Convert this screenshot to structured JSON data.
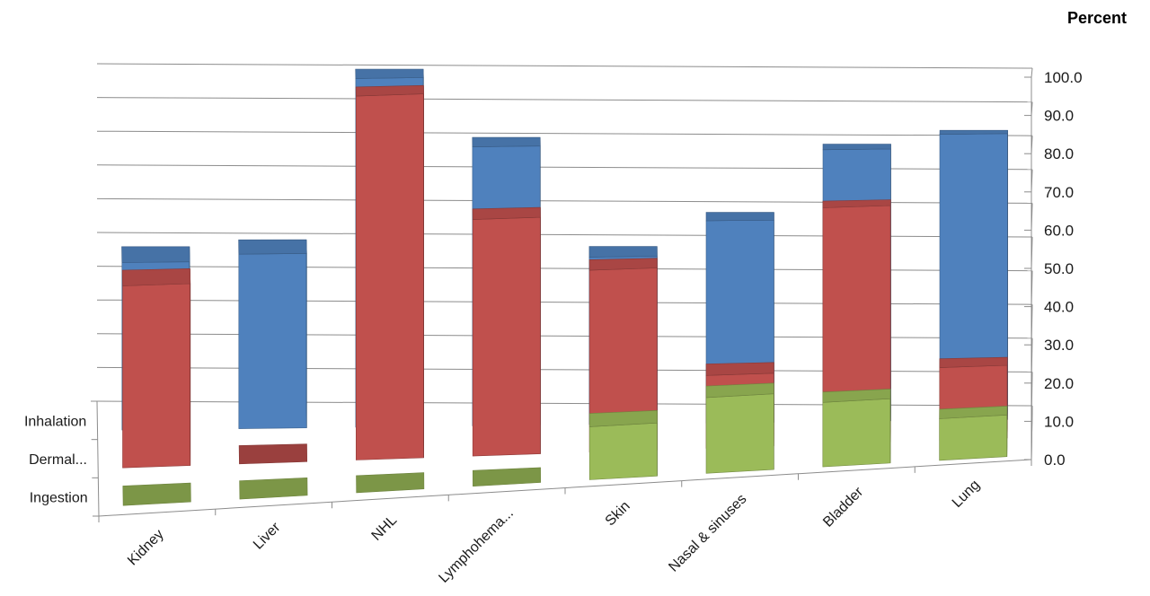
{
  "chart_data": {
    "type": "bar",
    "subtype": "3d-column",
    "ylabel": "Percent",
    "ylim": [
      0,
      100
    ],
    "yticks": [
      "0.0",
      "10.0",
      "20.0",
      "30.0",
      "40.0",
      "50.0",
      "60.0",
      "70.0",
      "80.0",
      "90.0",
      "100.0"
    ],
    "grid": true,
    "categories": [
      "Kidney",
      "Liver",
      "NHL",
      "Lymphohema...",
      "Skin",
      "Nasal & sinuses",
      "Bladder",
      "Lung"
    ],
    "series": [
      {
        "name": "Inhalation",
        "color": "#4f81bd",
        "values": [
          48,
          50,
          100,
          80,
          48,
          58,
          78,
          82
        ]
      },
      {
        "name": "Dermal...",
        "color": "#c0504d",
        "values": [
          50,
          0,
          100,
          65,
          50,
          20,
          65,
          20
        ]
      },
      {
        "name": "Ingestion",
        "color": "#9bbb59",
        "values": [
          0,
          0,
          0,
          0,
          14,
          20,
          17,
          11
        ]
      }
    ]
  }
}
